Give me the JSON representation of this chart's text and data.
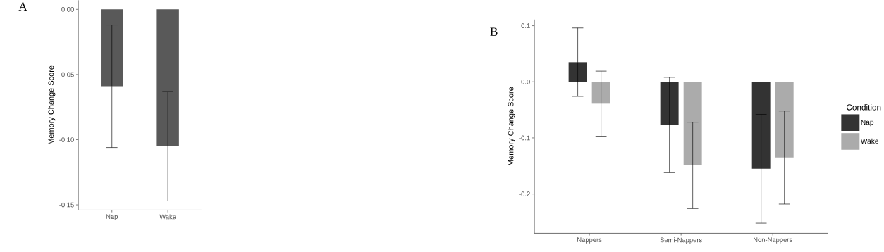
{
  "chart_data": [
    {
      "type": "bar",
      "categories": [
        "Nap",
        "Wake"
      ],
      "values": [
        -0.059,
        -0.105
      ],
      "errors": [
        0.047,
        0.042
      ],
      "color": "#595959",
      "ylabel": "Memory Change Score",
      "ylim": [
        -0.154,
        0.007
      ],
      "yticks": [
        {
          "value": -0.15,
          "label": "-0.15"
        },
        {
          "value": -0.1,
          "label": "-0.10"
        },
        -0.05,
        {
          "value": 0,
          "label": "0.00"
        }
      ],
      "annotations": [
        "A"
      ]
    },
    {
      "type": "bar",
      "categories": [
        "Nappers",
        "Semi-Nappers",
        "Non-Nappers"
      ],
      "series": [
        {
          "name": "Nap",
          "color": "#333333",
          "values": [
            0.035,
            -0.077,
            -0.155
          ],
          "errors": [
            0.061,
            0.085,
            0.097
          ]
        },
        {
          "name": "Wake",
          "color": "#ababab",
          "values": [
            -0.039,
            -0.149,
            -0.135
          ],
          "errors": [
            0.058,
            0.077,
            0.083
          ]
        }
      ],
      "ylabel": "Memory Change Score",
      "legend_title": "Condition",
      "legend": "right",
      "ylim": [
        -0.27,
        0.111
      ],
      "yticks": [
        -0.2,
        -0.1,
        {
          "value": 0,
          "label": "0.0"
        },
        0.1
      ],
      "annotations": [
        "B"
      ]
    }
  ]
}
